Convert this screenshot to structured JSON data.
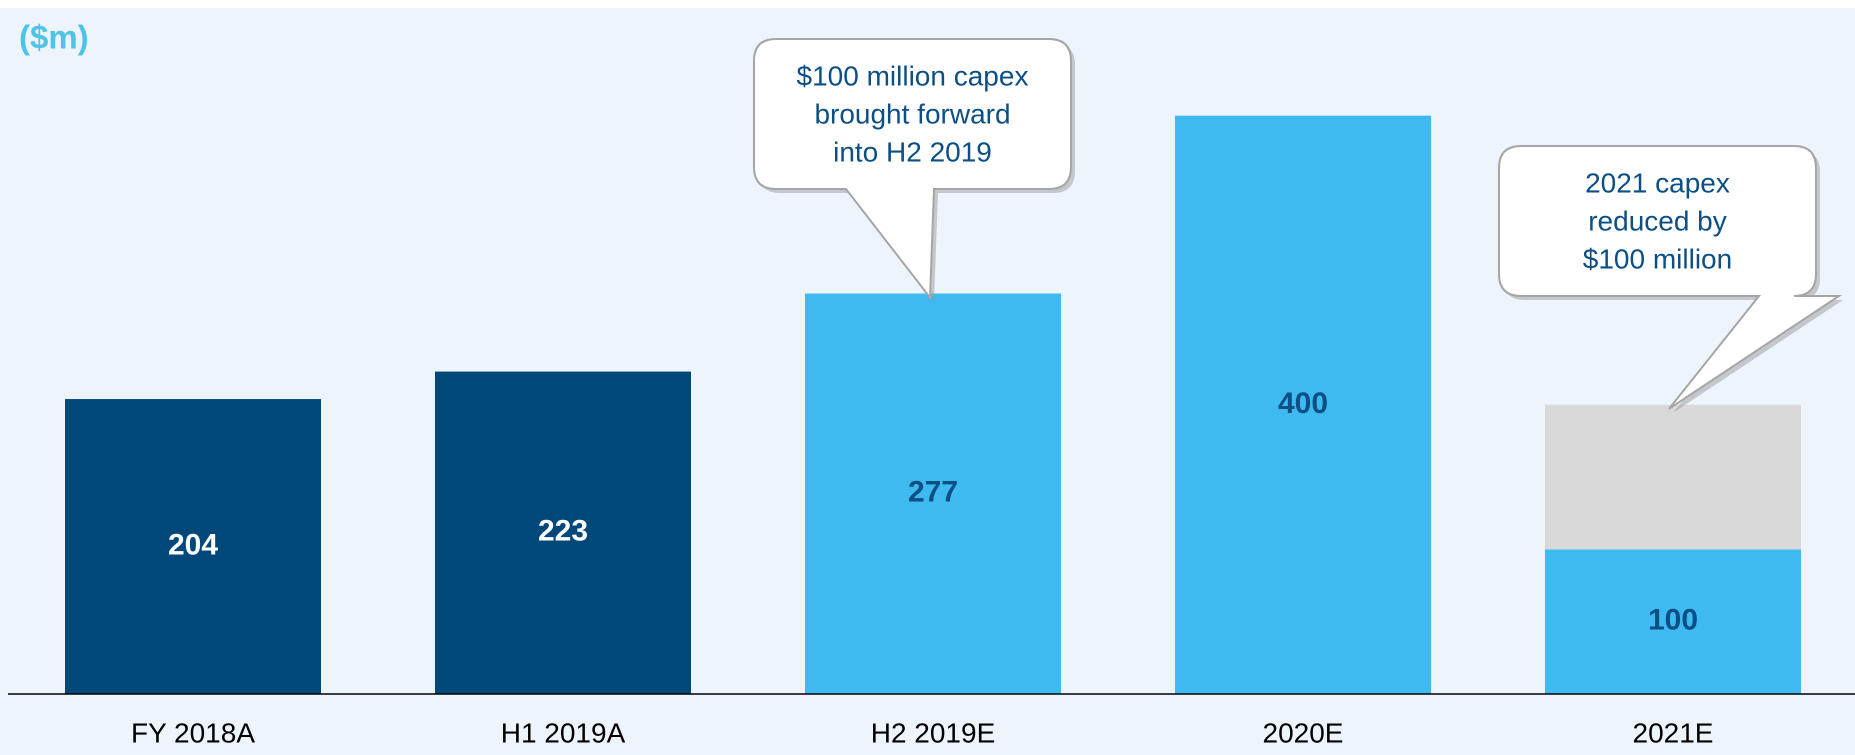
{
  "chart_data": {
    "type": "bar",
    "unit_label": "($m)",
    "categories": [
      "FY 2018A",
      "H1 2019A",
      "H2 2019E",
      "2020E",
      "2021E"
    ],
    "series": [
      {
        "values": [
          204,
          223,
          277,
          400,
          100
        ],
        "colors": [
          "#00487a",
          "#00487a",
          "#3fbaf0",
          "#3fbaf0",
          "#3fbaf0"
        ],
        "label_colors": [
          "#ffffff",
          "#ffffff",
          "#0b4f85",
          "#0b4f85",
          "#0b4f85"
        ]
      },
      {
        "values": [
          null,
          null,
          null,
          null,
          100
        ],
        "color": "#d9d9d9"
      }
    ],
    "ylim": [
      0,
      480
    ],
    "annotations": [
      {
        "lines": [
          "$100 million capex",
          "brought forward",
          "into H2 2019"
        ],
        "category": 2
      },
      {
        "lines": [
          "2021 capex",
          "reduced by",
          "$100 million"
        ],
        "category": 4
      }
    ]
  }
}
